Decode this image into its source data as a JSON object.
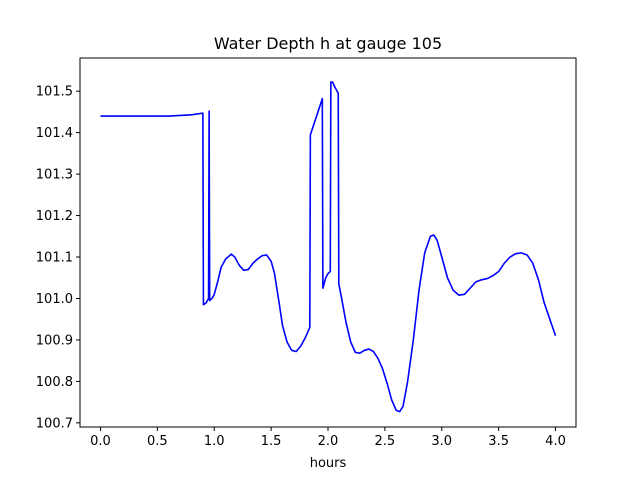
{
  "chart_data": {
    "type": "line",
    "title": "Water Depth h at gauge 105",
    "xlabel": "hours",
    "ylabel": "",
    "xlim": [
      -0.18,
      4.18
    ],
    "ylim": [
      100.69,
      101.58
    ],
    "xticks": [
      0.0,
      0.5,
      1.0,
      1.5,
      2.0,
      2.5,
      3.0,
      3.5,
      4.0
    ],
    "xtick_labels": [
      "0.0",
      "0.5",
      "1.0",
      "1.5",
      "2.0",
      "2.5",
      "3.0",
      "3.5",
      "4.0"
    ],
    "yticks": [
      100.7,
      100.8,
      100.9,
      101.0,
      101.1,
      101.2,
      101.3,
      101.4,
      101.5
    ],
    "ytick_labels": [
      "100.7",
      "100.8",
      "100.9",
      "101.0",
      "101.1",
      "101.2",
      "101.3",
      "101.4",
      "101.5"
    ],
    "grid": false,
    "legend": "none",
    "series": [
      {
        "color": "#0000ff",
        "x": [
          0.0,
          0.2,
          0.4,
          0.6,
          0.8,
          0.9,
          0.905,
          0.93,
          0.95,
          0.955,
          0.96,
          0.98,
          1.0,
          1.03,
          1.06,
          1.1,
          1.15,
          1.18,
          1.22,
          1.26,
          1.3,
          1.34,
          1.38,
          1.42,
          1.46,
          1.5,
          1.53,
          1.57,
          1.6,
          1.64,
          1.68,
          1.72,
          1.76,
          1.8,
          1.84,
          1.845,
          1.9,
          1.95,
          1.955,
          1.98,
          2.0,
          2.02,
          2.025,
          2.04,
          2.06,
          2.09,
          2.095,
          2.12,
          2.16,
          2.2,
          2.24,
          2.28,
          2.32,
          2.36,
          2.4,
          2.44,
          2.48,
          2.52,
          2.56,
          2.6,
          2.63,
          2.66,
          2.7,
          2.75,
          2.8,
          2.85,
          2.9,
          2.93,
          2.96,
          3.0,
          3.05,
          3.1,
          3.15,
          3.2,
          3.25,
          3.3,
          3.35,
          3.4,
          3.45,
          3.5,
          3.55,
          3.6,
          3.65,
          3.7,
          3.75,
          3.8,
          3.85,
          3.9,
          3.95,
          4.0
        ],
        "y": [
          101.44,
          101.44,
          101.44,
          101.44,
          101.443,
          101.447,
          100.985,
          100.99,
          101.0,
          101.452,
          100.995,
          101.0,
          101.01,
          101.04,
          101.075,
          101.095,
          101.107,
          101.1,
          101.08,
          101.068,
          101.07,
          101.085,
          101.095,
          101.103,
          101.105,
          101.09,
          101.06,
          100.99,
          100.935,
          100.895,
          100.875,
          100.872,
          100.885,
          100.905,
          100.93,
          101.395,
          101.44,
          101.482,
          101.025,
          101.05,
          101.06,
          101.065,
          101.522,
          101.522,
          101.51,
          101.495,
          101.035,
          101.0,
          100.94,
          100.895,
          100.87,
          100.868,
          100.875,
          100.878,
          100.872,
          100.855,
          100.83,
          100.795,
          100.755,
          100.73,
          100.727,
          100.74,
          100.8,
          100.9,
          101.02,
          101.11,
          101.15,
          101.153,
          101.14,
          101.1,
          101.05,
          101.02,
          101.008,
          101.01,
          101.025,
          101.04,
          101.045,
          101.048,
          101.055,
          101.065,
          101.085,
          101.1,
          101.108,
          101.11,
          101.105,
          101.085,
          101.045,
          100.99,
          100.95,
          100.91
        ]
      }
    ]
  }
}
